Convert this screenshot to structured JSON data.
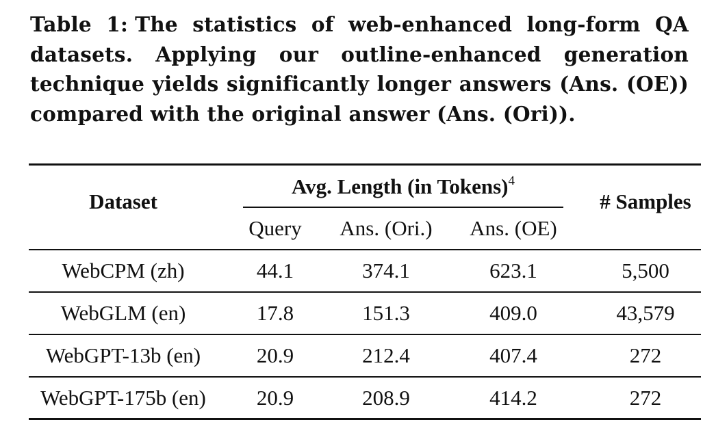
{
  "caption": {
    "label": "Table 1:",
    "text": "The statistics of web-enhanced long-form QA datasets. Applying our outline-enhanced generation technique yields significantly longer answers (Ans. (OE)) compared with the original answer (Ans. (Ori))."
  },
  "table": {
    "header": {
      "dataset": "Dataset",
      "avg_length": "Avg. Length (in Tokens)",
      "footnote_mark": "4",
      "samples": "# Samples",
      "sub": {
        "query": "Query",
        "ans_ori": "Ans. (Ori.)",
        "ans_oe": "Ans. (OE)"
      }
    },
    "rows": [
      {
        "dataset": "WebCPM (zh)",
        "query": "44.1",
        "ans_ori": "374.1",
        "ans_oe": "623.1",
        "samples": "5,500"
      },
      {
        "dataset": "WebGLM (en)",
        "query": "17.8",
        "ans_ori": "151.3",
        "ans_oe": "409.0",
        "samples": "43,579"
      },
      {
        "dataset": "WebGPT-13b (en)",
        "query": "20.9",
        "ans_ori": "212.4",
        "ans_oe": "407.4",
        "samples": "272"
      },
      {
        "dataset": "WebGPT-175b (en)",
        "query": "20.9",
        "ans_ori": "208.9",
        "ans_oe": "414.2",
        "samples": "272"
      }
    ]
  }
}
